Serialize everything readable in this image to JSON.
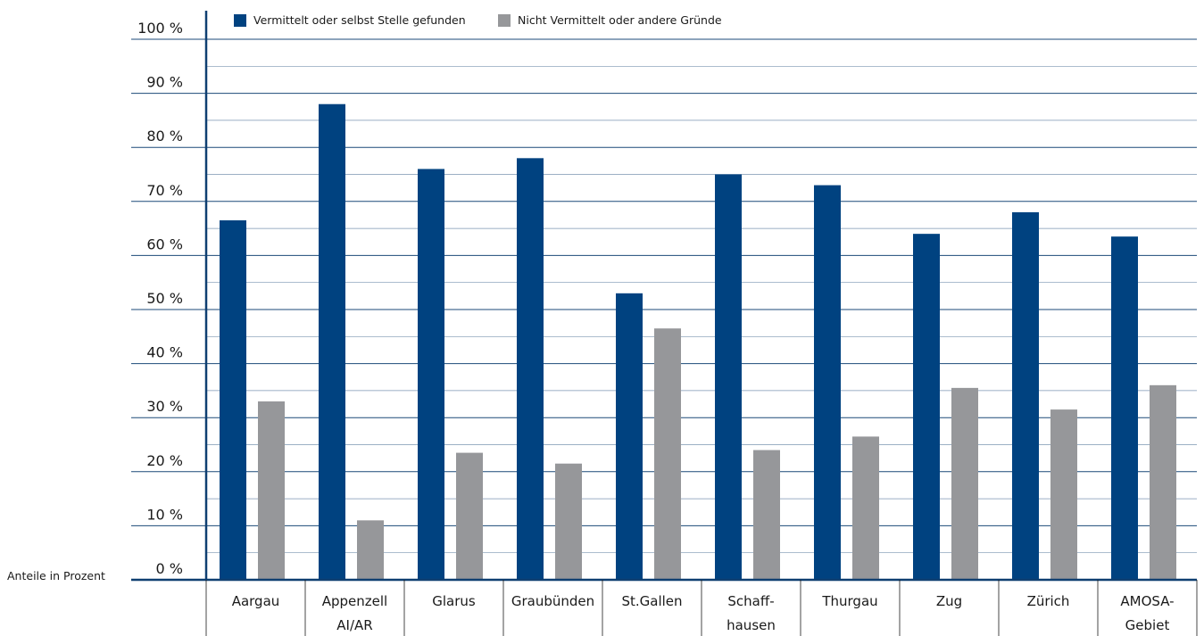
{
  "chart_data": {
    "type": "bar",
    "ylabel": "Anteile in Prozent",
    "ylim": [
      0,
      100
    ],
    "y_ticks": [
      "0 %",
      "10 %",
      "20 %",
      "30 %",
      "40 %",
      "50 %",
      "60 %",
      "70 %",
      "80 %",
      "90 %",
      "100 %"
    ],
    "legend_position": "top",
    "grid": true,
    "categories": [
      [
        "Aargau"
      ],
      [
        "Appenzell",
        "AI/AR"
      ],
      [
        "Glarus"
      ],
      [
        "Graubünden"
      ],
      [
        "St.Gallen"
      ],
      [
        "Schaff-",
        "hausen"
      ],
      [
        "Thurgau"
      ],
      [
        "Zug"
      ],
      [
        "Zürich"
      ],
      [
        "AMOSA-",
        "Gebiet"
      ]
    ],
    "series": [
      {
        "name": "Vermittelt oder selbst Stelle gefunden",
        "color": "#004280",
        "values": [
          66.5,
          88,
          76,
          78,
          53,
          75,
          73,
          64,
          68,
          63.5
        ]
      },
      {
        "name": "Nicht Vermittelt oder andere Gründe",
        "color": "#96979a",
        "values": [
          33,
          11,
          23.5,
          21.5,
          46.5,
          24,
          26.5,
          35.5,
          31.5,
          36
        ]
      }
    ],
    "colors": {
      "axis": "#0f3f71",
      "grid": "#0f3f71"
    }
  }
}
